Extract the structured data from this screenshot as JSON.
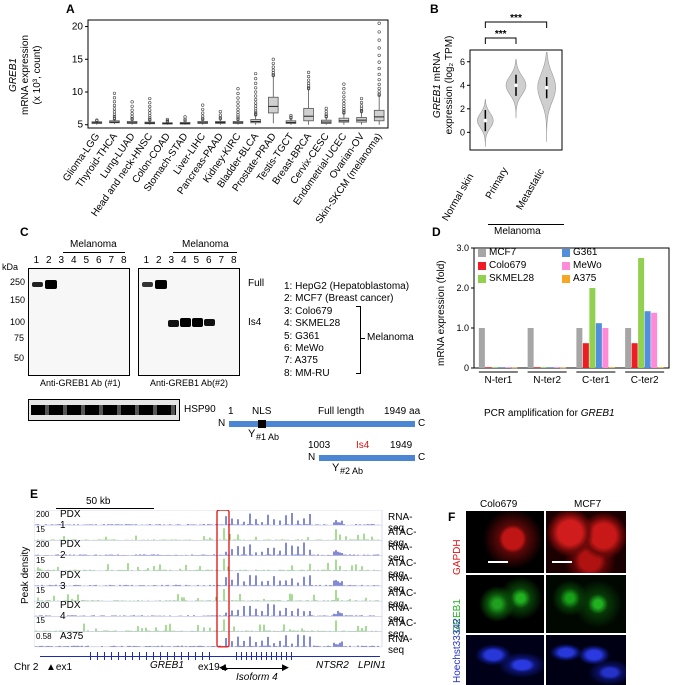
{
  "panelA": {
    "label": "A",
    "ylabel_gene": "GREB1",
    "ylabel_line2": "mRNA expression",
    "ylabel_line3": "(x 10³, count)",
    "chart_data": {
      "type": "box",
      "categories": [
        "Glioma-LGG",
        "Thyroid-THCA",
        "Lung-LUAD",
        "Head and neck-HNSC",
        "Colon-COAD",
        "Stomach-STAD",
        "Liver-LIHC",
        "Pancreas-PAAD",
        "Kidney-KIRC",
        "Bladder-BLCA",
        "Prostate-PRAD",
        "Testis-TGCT",
        "Breast-BRCA",
        "Cervix-CESC",
        "Endometrial-UCEC",
        "Ovarian-OV",
        "Skin-SKCM (melanoma)"
      ],
      "boxes": [
        {
          "q1": 5.2,
          "median": 5.3,
          "q3": 5.45,
          "min": 5.0,
          "max": 5.6
        },
        {
          "q1": 5.3,
          "median": 5.4,
          "q3": 5.6,
          "min": 5.1,
          "max": 5.9
        },
        {
          "q1": 5.2,
          "median": 5.3,
          "q3": 5.5,
          "min": 5.0,
          "max": 5.8
        },
        {
          "q1": 5.15,
          "median": 5.25,
          "q3": 5.4,
          "min": 5.0,
          "max": 5.7
        },
        {
          "q1": 5.1,
          "median": 5.2,
          "q3": 5.3,
          "min": 5.0,
          "max": 5.5
        },
        {
          "q1": 5.1,
          "median": 5.2,
          "q3": 5.35,
          "min": 5.0,
          "max": 5.6
        },
        {
          "q1": 5.2,
          "median": 5.3,
          "q3": 5.5,
          "min": 5.0,
          "max": 5.8
        },
        {
          "q1": 5.2,
          "median": 5.35,
          "q3": 5.5,
          "min": 5.0,
          "max": 5.9
        },
        {
          "q1": 5.2,
          "median": 5.3,
          "q3": 5.5,
          "min": 5.0,
          "max": 5.8
        },
        {
          "q1": 5.3,
          "median": 5.5,
          "q3": 5.8,
          "min": 5.0,
          "max": 6.5
        },
        {
          "q1": 6.8,
          "median": 7.8,
          "q3": 9.2,
          "min": 5.2,
          "max": 12.5
        },
        {
          "q1": 5.2,
          "median": 5.35,
          "q3": 5.6,
          "min": 5.0,
          "max": 6.0
        },
        {
          "q1": 5.6,
          "median": 6.3,
          "q3": 7.5,
          "min": 5.0,
          "max": 10.5
        },
        {
          "q1": 5.2,
          "median": 5.4,
          "q3": 5.7,
          "min": 5.0,
          "max": 6.2
        },
        {
          "q1": 5.4,
          "median": 5.6,
          "q3": 6.0,
          "min": 5.0,
          "max": 6.8
        },
        {
          "q1": 5.4,
          "median": 5.7,
          "q3": 6.1,
          "min": 5.0,
          "max": 7.0
        },
        {
          "q1": 5.6,
          "median": 6.2,
          "q3": 7.2,
          "min": 5.0,
          "max": 9.5
        }
      ],
      "outlier_max": [
        5.7,
        9.8,
        8.5,
        9.0,
        5.8,
        6.2,
        8.0,
        7.0,
        10.5,
        12.8,
        15.0,
        6.4,
        13.0,
        7.5,
        11.2,
        9.0,
        20.5
      ],
      "yticks": [
        5,
        10,
        15,
        20
      ],
      "ylim": [
        4.5,
        21
      ]
    }
  },
  "panelB": {
    "label": "B",
    "ylabel_gene": "GREB1",
    "ylabel_rest": "mRNA",
    "ylabel_line2": "expression (log₂ TPM)",
    "sig1": "***",
    "sig2": "***",
    "group_label": "Melanoma",
    "chart_data": {
      "type": "violin",
      "categories": [
        "Normal skin",
        "Primary",
        "Metastatic"
      ],
      "medians": [
        1.0,
        4.0,
        3.8
      ],
      "yticks": [
        0,
        2,
        4,
        6
      ],
      "ylim": [
        -1.5,
        7
      ]
    }
  },
  "panelC": {
    "label": "C",
    "kda": "kDa",
    "markers": [
      "250",
      "150",
      "100",
      "75",
      "50"
    ],
    "melanoma": "Melanoma",
    "lanes": [
      "1",
      "2",
      "3",
      "4",
      "5",
      "6",
      "7",
      "8"
    ],
    "ab1": "Anti-GREB1 Ab (#1)",
    "ab2": "Anti-GREB1 Ab(#2)",
    "hsp": "HSP90",
    "band_full": "Full",
    "band_is4": "Is4",
    "list": [
      "1: HepG2 (Hepatoblastoma)",
      "2: MCF7 (Breast cancer)",
      "3: Colo679",
      "4: SKMEL28",
      "5: G361",
      "6: MeWo",
      "7: A375",
      "8: MM-RU"
    ],
    "list_melanoma": "Melanoma",
    "schema": {
      "start": "1",
      "nls": "NLS",
      "full_length": "Full length",
      "end": "1949 aa",
      "n": "N",
      "c": "C",
      "ab1": "#1 Ab",
      "is4_start": "1003",
      "is4_label": "Is4",
      "is4_end": "1949",
      "ab2": "#2 Ab"
    }
  },
  "panelD": {
    "label": "D",
    "ylabel": "mRNA expression (fold)",
    "xlabel_prefix": "PCR amplification for ",
    "xlabel_gene": "GREB1",
    "chart_data": {
      "type": "bar",
      "categories": [
        "N-ter1",
        "N-ter2",
        "C-ter1",
        "C-ter2"
      ],
      "series": [
        {
          "name": "MCF7",
          "color": "#a6a6a6",
          "values": [
            1.0,
            1.0,
            1.0,
            1.0
          ]
        },
        {
          "name": "Colo679",
          "color": "#ee1c25",
          "values": [
            0.02,
            0.02,
            0.62,
            0.62
          ]
        },
        {
          "name": "SKMEL28",
          "color": "#92d050",
          "values": [
            0.02,
            0.02,
            2.0,
            2.75
          ]
        },
        {
          "name": "G361",
          "color": "#4f8fdc",
          "values": [
            0.02,
            0.02,
            1.12,
            1.42
          ]
        },
        {
          "name": "MeWo",
          "color": "#ff8ad8",
          "values": [
            0.02,
            0.02,
            1.0,
            1.38
          ]
        },
        {
          "name": "A375",
          "color": "#f5a623",
          "values": [
            0.01,
            0.01,
            0.02,
            0.02
          ]
        }
      ],
      "yticks": [
        "0",
        "1.0",
        "2.0",
        "3.0"
      ],
      "ylim": [
        0,
        3
      ]
    }
  },
  "panelE": {
    "label": "E",
    "scale": "50 kb",
    "ylabel": "Peak density",
    "tracks": [
      {
        "name": "PDX 1",
        "scale": "200",
        "type": "RNA-seq"
      },
      {
        "name": "",
        "scale": "15",
        "type": "ATAC-seq"
      },
      {
        "name": "PDX 2",
        "scale": "200",
        "type": "RNA-seq"
      },
      {
        "name": "",
        "scale": "15",
        "type": "ATAC-seq"
      },
      {
        "name": "PDX 3",
        "scale": "200",
        "type": "RNA-seq"
      },
      {
        "name": "",
        "scale": "15",
        "type": "ATAC-seq"
      },
      {
        "name": "PDX 4",
        "scale": "200",
        "type": "RNA-seq"
      },
      {
        "name": "",
        "scale": "15",
        "type": "ATAC-seq"
      },
      {
        "name": "A375",
        "scale": "0.58",
        "type": "RNA-seq"
      }
    ],
    "chr": "Chr 2",
    "ex1": "ex1",
    "greb1": "GREB1",
    "ex19": "ex19",
    "isoform": "Isoform 4",
    "ntsr2": "NTSR2",
    "lpin1": "LPIN1",
    "rna_color": "#1c2bb0",
    "atac_color": "#5fbf3c"
  },
  "panelF": {
    "label": "F",
    "cols": [
      "Colo679",
      "MCF7"
    ],
    "rows": [
      "GAPDH",
      "GREB1",
      "Hoechst33342"
    ],
    "row_colors": [
      "#e01010",
      "#20b020",
      "#2030d0"
    ]
  }
}
